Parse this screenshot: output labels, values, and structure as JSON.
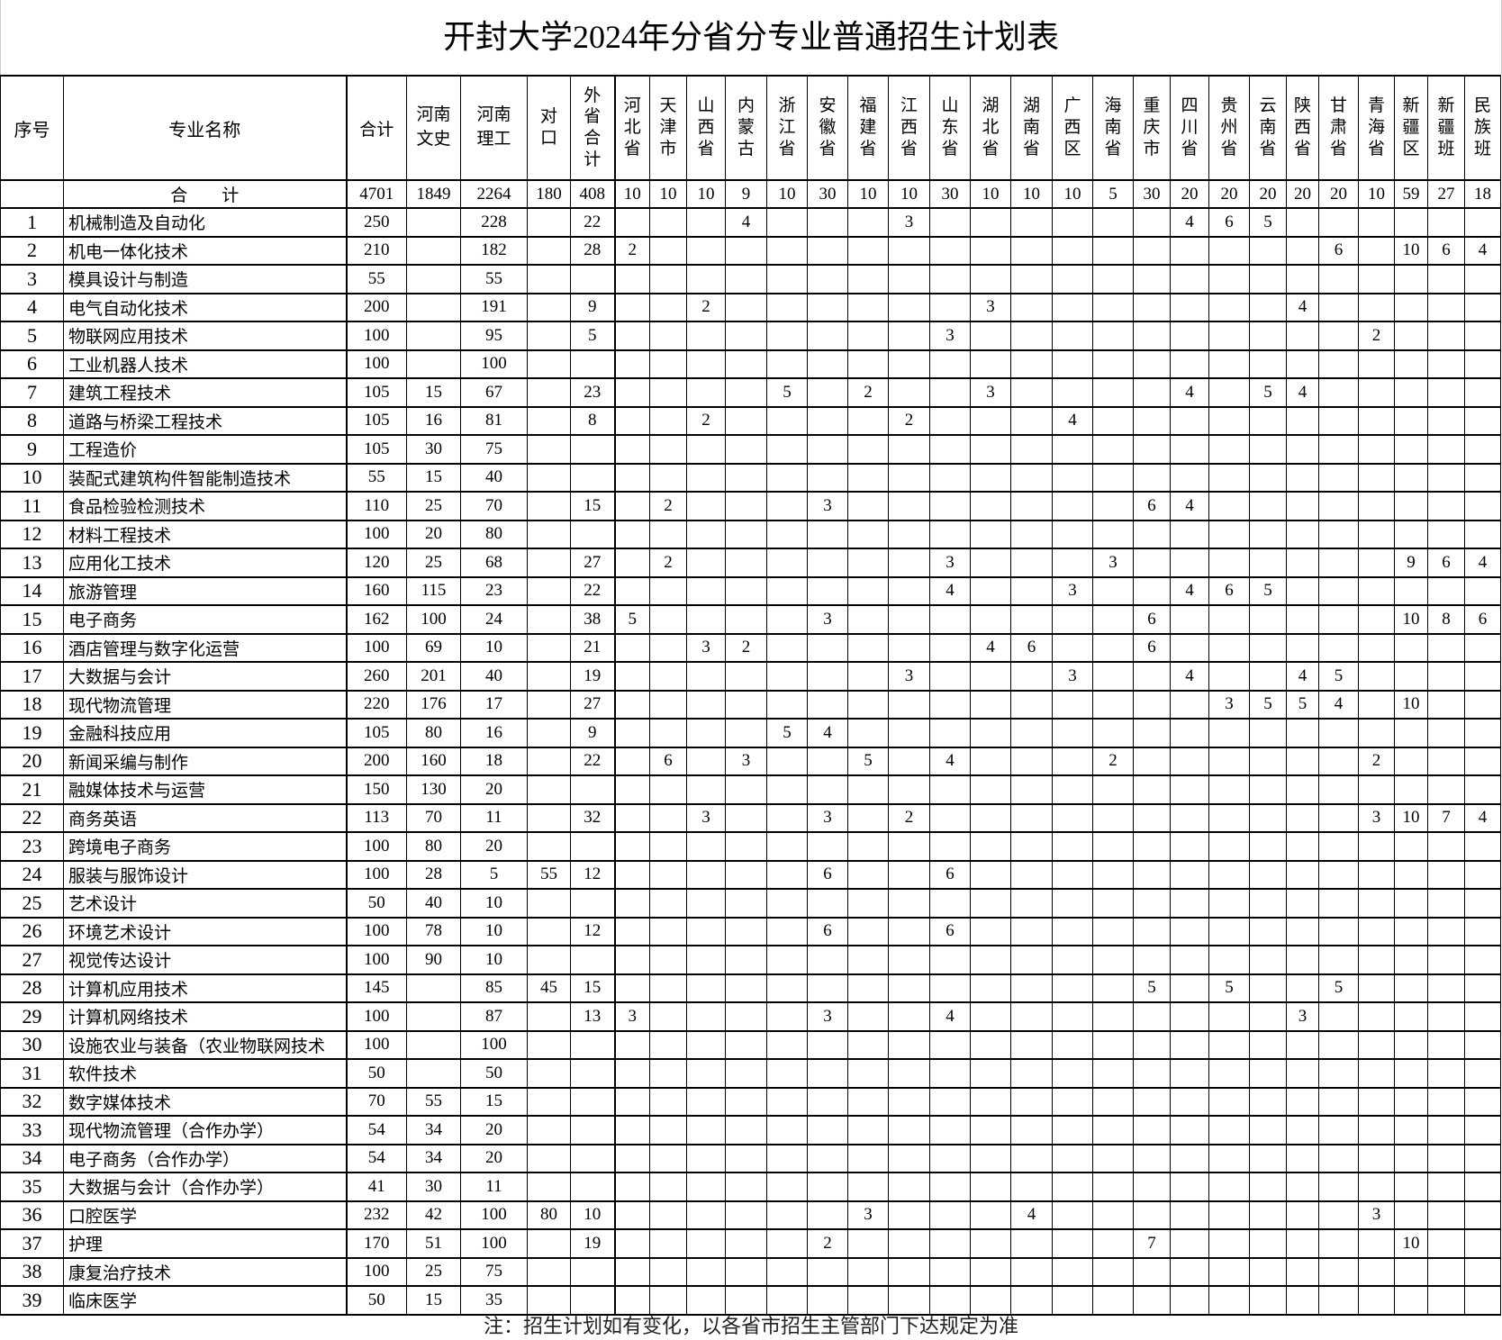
{
  "title": "开封大学2024年分省分专业普通招生计划表",
  "headers": [
    "序号",
    "专业名称",
    "合计",
    "河南文史",
    "河南理工",
    "对口",
    "外省合计",
    "河北省",
    "天津市",
    "山西省",
    "内蒙古",
    "浙江省",
    "安徽省",
    "福建省",
    "江西省",
    "山东省",
    "湖北省",
    "湖南省",
    "广西区",
    "海南省",
    "重庆市",
    "四川省",
    "贵州省",
    "云南省",
    "陕西省",
    "甘肃省",
    "青海省",
    "新疆区",
    "新疆班",
    "民族班"
  ],
  "total_row": {
    "label": "合　　计",
    "values": [
      "4701",
      "1849",
      "2264",
      "180",
      "408",
      "10",
      "10",
      "10",
      "9",
      "10",
      "30",
      "10",
      "10",
      "30",
      "10",
      "10",
      "10",
      "5",
      "30",
      "20",
      "20",
      "20",
      "20",
      "20",
      "10",
      "59",
      "27",
      "18"
    ]
  },
  "rows": [
    {
      "no": "1",
      "name": "机械制造及自动化",
      "values": [
        "250",
        "",
        "228",
        "",
        "22",
        "",
        "",
        "",
        "4",
        "",
        "",
        "",
        "3",
        "",
        "",
        "",
        "",
        "",
        "",
        "4",
        "6",
        "5",
        "",
        "",
        "",
        "",
        "",
        ""
      ]
    },
    {
      "no": "2",
      "name": "机电一体化技术",
      "values": [
        "210",
        "",
        "182",
        "",
        "28",
        "2",
        "",
        "",
        "",
        "",
        "",
        "",
        "",
        "",
        "",
        "",
        "",
        "",
        "",
        "",
        "",
        "",
        "",
        "6",
        "",
        "10",
        "6",
        "4"
      ]
    },
    {
      "no": "3",
      "name": "模具设计与制造",
      "values": [
        "55",
        "",
        "55",
        "",
        "",
        "",
        "",
        "",
        "",
        "",
        "",
        "",
        "",
        "",
        "",
        "",
        "",
        "",
        "",
        "",
        "",
        "",
        "",
        "",
        "",
        "",
        "",
        ""
      ]
    },
    {
      "no": "4",
      "name": "电气自动化技术",
      "values": [
        "200",
        "",
        "191",
        "",
        "9",
        "",
        "",
        "2",
        "",
        "",
        "",
        "",
        "",
        "",
        "3",
        "",
        "",
        "",
        "",
        "",
        "",
        "",
        "4",
        "",
        "",
        "",
        "",
        ""
      ]
    },
    {
      "no": "5",
      "name": "物联网应用技术",
      "values": [
        "100",
        "",
        "95",
        "",
        "5",
        "",
        "",
        "",
        "",
        "",
        "",
        "",
        "",
        "3",
        "",
        "",
        "",
        "",
        "",
        "",
        "",
        "",
        "",
        "",
        "2",
        "",
        "",
        ""
      ]
    },
    {
      "no": "6",
      "name": "工业机器人技术",
      "values": [
        "100",
        "",
        "100",
        "",
        "",
        "",
        "",
        "",
        "",
        "",
        "",
        "",
        "",
        "",
        "",
        "",
        "",
        "",
        "",
        "",
        "",
        "",
        "",
        "",
        "",
        "",
        "",
        ""
      ]
    },
    {
      "no": "7",
      "name": "建筑工程技术",
      "values": [
        "105",
        "15",
        "67",
        "",
        "23",
        "",
        "",
        "",
        "",
        "5",
        "",
        "2",
        "",
        "",
        "3",
        "",
        "",
        "",
        "",
        "4",
        "",
        "5",
        "4",
        "",
        "",
        "",
        "",
        ""
      ]
    },
    {
      "no": "8",
      "name": "道路与桥梁工程技术",
      "values": [
        "105",
        "16",
        "81",
        "",
        "8",
        "",
        "",
        "2",
        "",
        "",
        "",
        "",
        "2",
        "",
        "",
        "",
        "4",
        "",
        "",
        "",
        "",
        "",
        "",
        "",
        "",
        "",
        "",
        ""
      ]
    },
    {
      "no": "9",
      "name": "工程造价",
      "values": [
        "105",
        "30",
        "75",
        "",
        "",
        "",
        "",
        "",
        "",
        "",
        "",
        "",
        "",
        "",
        "",
        "",
        "",
        "",
        "",
        "",
        "",
        "",
        "",
        "",
        "",
        "",
        "",
        ""
      ]
    },
    {
      "no": "10",
      "name": "装配式建筑构件智能制造技术",
      "values": [
        "55",
        "15",
        "40",
        "",
        "",
        "",
        "",
        "",
        "",
        "",
        "",
        "",
        "",
        "",
        "",
        "",
        "",
        "",
        "",
        "",
        "",
        "",
        "",
        "",
        "",
        "",
        "",
        ""
      ]
    },
    {
      "no": "11",
      "name": "食品检验检测技术",
      "values": [
        "110",
        "25",
        "70",
        "",
        "15",
        "",
        "2",
        "",
        "",
        "",
        "3",
        "",
        "",
        "",
        "",
        "",
        "",
        "",
        "6",
        "4",
        "",
        "",
        "",
        "",
        "",
        "",
        "",
        ""
      ]
    },
    {
      "no": "12",
      "name": "材料工程技术",
      "values": [
        "100",
        "20",
        "80",
        "",
        "",
        "",
        "",
        "",
        "",
        "",
        "",
        "",
        "",
        "",
        "",
        "",
        "",
        "",
        "",
        "",
        "",
        "",
        "",
        "",
        "",
        "",
        "",
        ""
      ]
    },
    {
      "no": "13",
      "name": "应用化工技术",
      "values": [
        "120",
        "25",
        "68",
        "",
        "27",
        "",
        "2",
        "",
        "",
        "",
        "",
        "",
        "",
        "3",
        "",
        "",
        "",
        "3",
        "",
        "",
        "",
        "",
        "",
        "",
        "",
        "9",
        "6",
        "4"
      ]
    },
    {
      "no": "14",
      "name": "旅游管理",
      "values": [
        "160",
        "115",
        "23",
        "",
        "22",
        "",
        "",
        "",
        "",
        "",
        "",
        "",
        "",
        "4",
        "",
        "",
        "3",
        "",
        "",
        "4",
        "6",
        "5",
        "",
        "",
        "",
        "",
        "",
        ""
      ]
    },
    {
      "no": "15",
      "name": "电子商务",
      "values": [
        "162",
        "100",
        "24",
        "",
        "38",
        "5",
        "",
        "",
        "",
        "",
        "3",
        "",
        "",
        "",
        "",
        "",
        "",
        "",
        "6",
        "",
        "",
        "",
        "",
        "",
        "",
        "10",
        "8",
        "6"
      ]
    },
    {
      "no": "16",
      "name": "酒店管理与数字化运营",
      "values": [
        "100",
        "69",
        "10",
        "",
        "21",
        "",
        "",
        "3",
        "2",
        "",
        "",
        "",
        "",
        "",
        "4",
        "6",
        "",
        "",
        "6",
        "",
        "",
        "",
        "",
        "",
        "",
        "",
        "",
        ""
      ]
    },
    {
      "no": "17",
      "name": "大数据与会计",
      "values": [
        "260",
        "201",
        "40",
        "",
        "19",
        "",
        "",
        "",
        "",
        "",
        "",
        "",
        "3",
        "",
        "",
        "",
        "3",
        "",
        "",
        "4",
        "",
        "",
        "4",
        "5",
        "",
        "",
        "",
        ""
      ]
    },
    {
      "no": "18",
      "name": "现代物流管理",
      "values": [
        "220",
        "176",
        "17",
        "",
        "27",
        "",
        "",
        "",
        "",
        "",
        "",
        "",
        "",
        "",
        "",
        "",
        "",
        "",
        "",
        "",
        "3",
        "5",
        "5",
        "4",
        "",
        "10",
        "",
        ""
      ]
    },
    {
      "no": "19",
      "name": "金融科技应用",
      "values": [
        "105",
        "80",
        "16",
        "",
        "9",
        "",
        "",
        "",
        "",
        "5",
        "4",
        "",
        "",
        "",
        "",
        "",
        "",
        "",
        "",
        "",
        "",
        "",
        "",
        "",
        "",
        "",
        "",
        ""
      ]
    },
    {
      "no": "20",
      "name": "新闻采编与制作",
      "values": [
        "200",
        "160",
        "18",
        "",
        "22",
        "",
        "6",
        "",
        "3",
        "",
        "",
        "5",
        "",
        "4",
        "",
        "",
        "",
        "2",
        "",
        "",
        "",
        "",
        "",
        "",
        "2",
        "",
        "",
        ""
      ]
    },
    {
      "no": "21",
      "name": "融媒体技术与运营",
      "values": [
        "150",
        "130",
        "20",
        "",
        "",
        "",
        "",
        "",
        "",
        "",
        "",
        "",
        "",
        "",
        "",
        "",
        "",
        "",
        "",
        "",
        "",
        "",
        "",
        "",
        "",
        "",
        "",
        ""
      ]
    },
    {
      "no": "22",
      "name": "商务英语",
      "values": [
        "113",
        "70",
        "11",
        "",
        "32",
        "",
        "",
        "3",
        "",
        "",
        "3",
        "",
        "2",
        "",
        "",
        "",
        "",
        "",
        "",
        "",
        "",
        "",
        "",
        "",
        "3",
        "10",
        "7",
        "4"
      ]
    },
    {
      "no": "23",
      "name": "跨境电子商务",
      "values": [
        "100",
        "80",
        "20",
        "",
        "",
        "",
        "",
        "",
        "",
        "",
        "",
        "",
        "",
        "",
        "",
        "",
        "",
        "",
        "",
        "",
        "",
        "",
        "",
        "",
        "",
        "",
        "",
        ""
      ]
    },
    {
      "no": "24",
      "name": "服装与服饰设计",
      "values": [
        "100",
        "28",
        "5",
        "55",
        "12",
        "",
        "",
        "",
        "",
        "",
        "6",
        "",
        "",
        "6",
        "",
        "",
        "",
        "",
        "",
        "",
        "",
        "",
        "",
        "",
        "",
        "",
        "",
        ""
      ]
    },
    {
      "no": "25",
      "name": "艺术设计",
      "values": [
        "50",
        "40",
        "10",
        "",
        "",
        "",
        "",
        "",
        "",
        "",
        "",
        "",
        "",
        "",
        "",
        "",
        "",
        "",
        "",
        "",
        "",
        "",
        "",
        "",
        "",
        "",
        "",
        ""
      ]
    },
    {
      "no": "26",
      "name": "环境艺术设计",
      "values": [
        "100",
        "78",
        "10",
        "",
        "12",
        "",
        "",
        "",
        "",
        "",
        "6",
        "",
        "",
        "6",
        "",
        "",
        "",
        "",
        "",
        "",
        "",
        "",
        "",
        "",
        "",
        "",
        "",
        ""
      ]
    },
    {
      "no": "27",
      "name": "视觉传达设计",
      "values": [
        "100",
        "90",
        "10",
        "",
        "",
        "",
        "",
        "",
        "",
        "",
        "",
        "",
        "",
        "",
        "",
        "",
        "",
        "",
        "",
        "",
        "",
        "",
        "",
        "",
        "",
        "",
        "",
        ""
      ]
    },
    {
      "no": "28",
      "name": "计算机应用技术",
      "values": [
        "145",
        "",
        "85",
        "45",
        "15",
        "",
        "",
        "",
        "",
        "",
        "",
        "",
        "",
        "",
        "",
        "",
        "",
        "",
        "5",
        "",
        "5",
        "",
        "",
        "5",
        "",
        "",
        "",
        ""
      ]
    },
    {
      "no": "29",
      "name": "计算机网络技术",
      "values": [
        "100",
        "",
        "87",
        "",
        "13",
        "3",
        "",
        "",
        "",
        "",
        "3",
        "",
        "",
        "4",
        "",
        "",
        "",
        "",
        "",
        "",
        "",
        "",
        "3",
        "",
        "",
        "",
        "",
        ""
      ]
    },
    {
      "no": "30",
      "name": "设施农业与装备（农业物联网技术",
      "values": [
        "100",
        "",
        "100",
        "",
        "",
        "",
        "",
        "",
        "",
        "",
        "",
        "",
        "",
        "",
        "",
        "",
        "",
        "",
        "",
        "",
        "",
        "",
        "",
        "",
        "",
        "",
        "",
        ""
      ]
    },
    {
      "no": "31",
      "name": "软件技术",
      "values": [
        "50",
        "",
        "50",
        "",
        "",
        "",
        "",
        "",
        "",
        "",
        "",
        "",
        "",
        "",
        "",
        "",
        "",
        "",
        "",
        "",
        "",
        "",
        "",
        "",
        "",
        "",
        "",
        ""
      ]
    },
    {
      "no": "32",
      "name": "数字媒体技术",
      "values": [
        "70",
        "55",
        "15",
        "",
        "",
        "",
        "",
        "",
        "",
        "",
        "",
        "",
        "",
        "",
        "",
        "",
        "",
        "",
        "",
        "",
        "",
        "",
        "",
        "",
        "",
        "",
        "",
        ""
      ]
    },
    {
      "no": "33",
      "name": "现代物流管理（合作办学）",
      "values": [
        "54",
        "34",
        "20",
        "",
        "",
        "",
        "",
        "",
        "",
        "",
        "",
        "",
        "",
        "",
        "",
        "",
        "",
        "",
        "",
        "",
        "",
        "",
        "",
        "",
        "",
        "",
        "",
        ""
      ]
    },
    {
      "no": "34",
      "name": "电子商务（合作办学）",
      "values": [
        "54",
        "34",
        "20",
        "",
        "",
        "",
        "",
        "",
        "",
        "",
        "",
        "",
        "",
        "",
        "",
        "",
        "",
        "",
        "",
        "",
        "",
        "",
        "",
        "",
        "",
        "",
        "",
        ""
      ]
    },
    {
      "no": "35",
      "name": "大数据与会计（合作办学）",
      "values": [
        "41",
        "30",
        "11",
        "",
        "",
        "",
        "",
        "",
        "",
        "",
        "",
        "",
        "",
        "",
        "",
        "",
        "",
        "",
        "",
        "",
        "",
        "",
        "",
        "",
        "",
        "",
        "",
        ""
      ]
    },
    {
      "no": "36",
      "name": "口腔医学",
      "values": [
        "232",
        "42",
        "100",
        "80",
        "10",
        "",
        "",
        "",
        "",
        "",
        "",
        "3",
        "",
        "",
        "",
        "4",
        "",
        "",
        "",
        "",
        "",
        "",
        "",
        "",
        "3",
        "",
        "",
        ""
      ]
    },
    {
      "no": "37",
      "name": "护理",
      "values": [
        "170",
        "51",
        "100",
        "",
        "19",
        "",
        "",
        "",
        "",
        "",
        "2",
        "",
        "",
        "",
        "",
        "",
        "",
        "",
        "7",
        "",
        "",
        "",
        "",
        "",
        "",
        "10",
        "",
        ""
      ]
    },
    {
      "no": "38",
      "name": "康复治疗技术",
      "values": [
        "100",
        "25",
        "75",
        "",
        "",
        "",
        "",
        "",
        "",
        "",
        "",
        "",
        "",
        "",
        "",
        "",
        "",
        "",
        "",
        "",
        "",
        "",
        "",
        "",
        "",
        "",
        "",
        ""
      ]
    },
    {
      "no": "39",
      "name": "临床医学",
      "values": [
        "50",
        "15",
        "35",
        "",
        "",
        "",
        "",
        "",
        "",
        "",
        "",
        "",
        "",
        "",
        "",
        "",
        "",
        "",
        "",
        "",
        "",
        "",
        "",
        "",
        "",
        "",
        "",
        ""
      ]
    }
  ],
  "footnote": "注：招生计划如有变化，以各省市招生主管部门下达规定为准"
}
